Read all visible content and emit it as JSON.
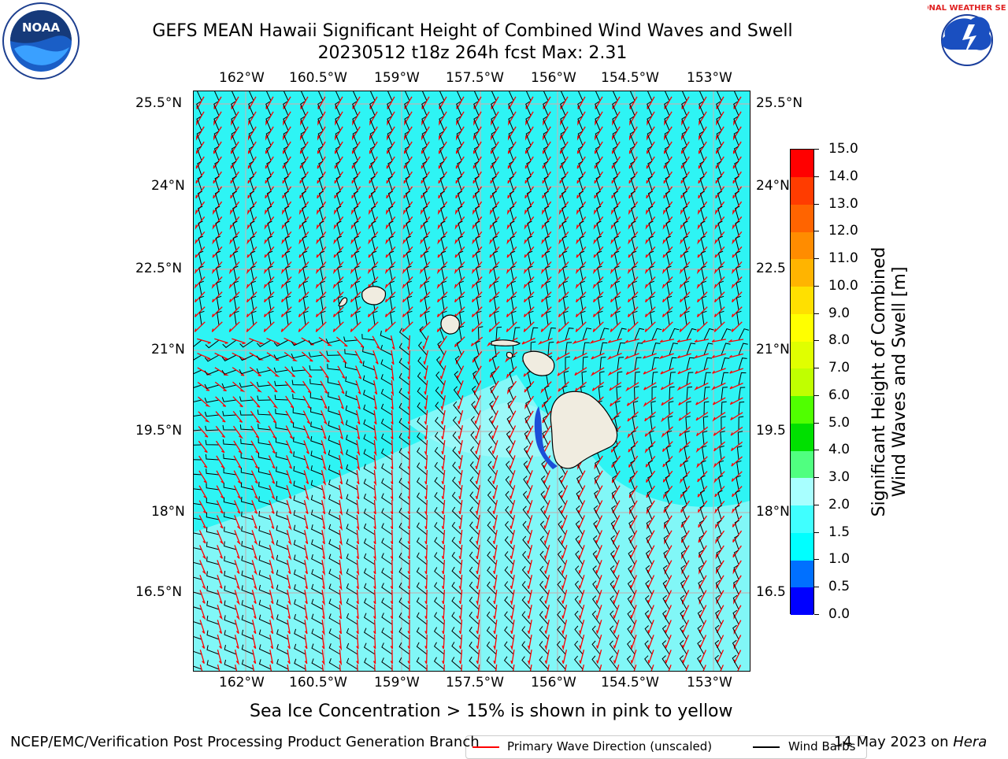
{
  "header": {
    "title_line1": "GEFS MEAN Hawaii Significant Height of Combined Wind Waves and Swell",
    "title_line2": "20230512 t18z 264h fcst   Max: 2.31"
  },
  "logos": {
    "noaa_text": "NOAA",
    "nws_text": "NATIONAL WEATHER SERVICE"
  },
  "map": {
    "lon_ticks": [
      "162°W",
      "160.5°W",
      "159°W",
      "157.5°W",
      "156°W",
      "154.5°W",
      "153°W"
    ],
    "lat_ticks": [
      "25.5°N",
      "24°N",
      "22.5°N",
      "21°N",
      "19.5°N",
      "18°N",
      "16.5°N"
    ],
    "lat_ticks_right": [
      "25.5°N",
      "24°N",
      "22.5",
      "21°N",
      "19.5",
      "18°N",
      "16.5"
    ],
    "ocean_color": "#2ef4f4",
    "land_color": "#f0ece0",
    "legend": {
      "wave_label": "Primary Wave Direction (unscaled)",
      "barb_label": "Wind Barbs",
      "wave_color": "#ff0000",
      "barb_color": "#000000"
    }
  },
  "colorbar": {
    "title_line1": "Significant Height of Combined",
    "title_line2": "Wind Waves and Swell [m]",
    "labels": [
      "0.0",
      "0.5",
      "1.0",
      "1.5",
      "2.0",
      "3.0",
      "4.0",
      "5.0",
      "6.0",
      "7.0",
      "8.0",
      "9.0",
      "10.0",
      "11.0",
      "12.0",
      "13.0",
      "14.0",
      "15.0"
    ],
    "colors": [
      "#0000ff",
      "#0070ff",
      "#00ffff",
      "#40ffff",
      "#a8ffff",
      "#50ff80",
      "#00e000",
      "#50ff00",
      "#c0ff00",
      "#e0ff00",
      "#ffff00",
      "#ffe000",
      "#ffb400",
      "#ff8c00",
      "#ff6400",
      "#ff3c00",
      "#ff0000"
    ]
  },
  "footer": {
    "sea_ice_note": "Sea Ice Concentration > 15% is shown in pink to yellow",
    "branch": "NCEP/EMC/Verification Post Processing Product Generation Branch",
    "date_prefix": "14 May 2023 on",
    "machine": "Hera"
  }
}
